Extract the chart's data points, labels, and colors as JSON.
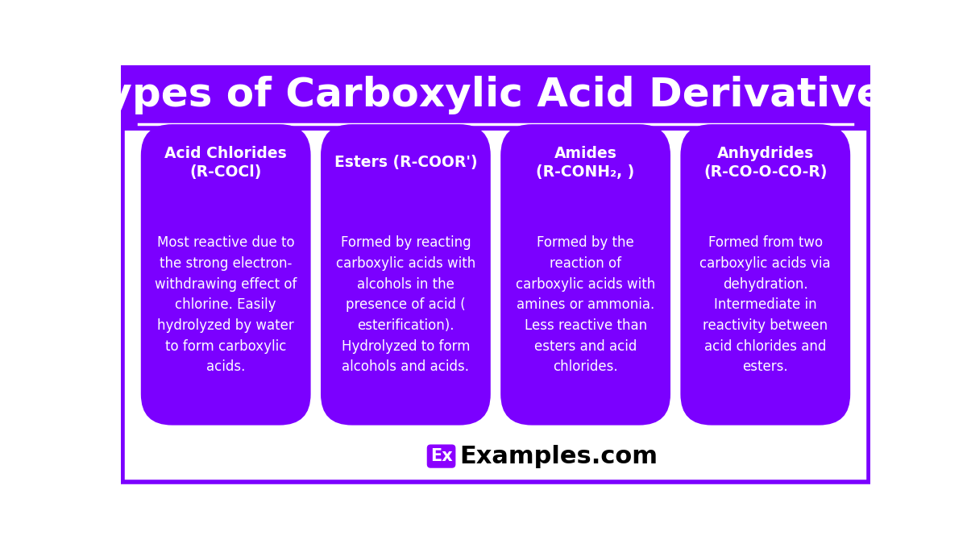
{
  "title": "Types of Carboxylic Acid Derivatives",
  "title_bg_color": "#7B00FF",
  "title_text_color": "#FFFFFF",
  "main_bg_color": "#FFFFFF",
  "card_bg_color": "#7B00FF",
  "card_border_color": "#7B00FF",
  "card_text_color": "#FFFFFF",
  "outer_border_color": "#7B00FF",
  "cards": [
    {
      "title": "Acid Chlorides\n(R-COCl)",
      "body": "Most reactive due to\nthe strong electron-\nwithdrawing effect of\nchlorine. Easily\nhydrolyzed by water\nto form carboxylic\nacids."
    },
    {
      "title": "Esters (R-COOR')",
      "body": "Formed by reacting\ncarboxylic acids with\nalcohols in the\npresence of acid (\nesterification).\nHydrolyzed to form\nalcohols and acids."
    },
    {
      "title": "Amides\n(R-CONH₂, )",
      "body": "Formed by the\nreaction of\ncarboxylic acids with\namines or ammonia.\nLess reactive than\nesters and acid\nchlorides."
    },
    {
      "title": "Anhydrides\n(R-CO-O-CO-R)",
      "body": "Formed from two\ncarboxylic acids via\ndehydration.\nIntermediate in\nreactivity between\nacid chlorides and\nesters."
    }
  ],
  "watermark_text": "Examples.com",
  "watermark_prefix": "Ex",
  "watermark_box_color": "#8B00FF",
  "watermark_text_color": "#000000",
  "watermark_prefix_color": "#FFFFFF"
}
